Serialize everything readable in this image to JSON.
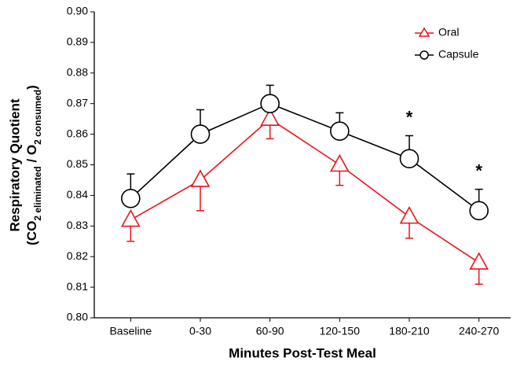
{
  "chart_data": {
    "type": "line",
    "xlabel": "Minutes Post-Test Meal",
    "ylabel": {
      "line1": "Respiratory Quotient",
      "line2": [
        {
          "text": "(CO"
        },
        {
          "text": "2 eliminated",
          "sub": true
        },
        {
          "text": " / O"
        },
        {
          "text": "2 consumed",
          "sub": true
        },
        {
          "text": ")"
        }
      ]
    },
    "categories": [
      "Baseline",
      "0-30",
      "60-90",
      "120-150",
      "180-210",
      "240-270"
    ],
    "series": [
      {
        "name": "Oral",
        "color": "#e8141b",
        "marker": "triangle",
        "error_direction": "down",
        "values": [
          0.832,
          0.845,
          0.865,
          0.85,
          0.833,
          0.818
        ],
        "errors": [
          0.007,
          0.01,
          0.0065,
          0.0067,
          0.007,
          0.007
        ]
      },
      {
        "name": "Capsule",
        "color": "#000000",
        "marker": "circle",
        "error_direction": "up",
        "values": [
          0.839,
          0.86,
          0.87,
          0.861,
          0.852,
          0.835
        ],
        "errors": [
          0.008,
          0.008,
          0.006,
          0.006,
          0.0075,
          0.007
        ]
      }
    ],
    "annotations": [
      {
        "text": "*",
        "x": "180-210"
      },
      {
        "text": "*",
        "x": "240-270"
      }
    ],
    "ylim": [
      0.8,
      0.9
    ],
    "yticks": [
      {
        "value": 0.8,
        "label": "0.80"
      },
      0.81,
      0.82,
      0.83,
      0.84,
      0.85,
      0.86,
      0.87,
      0.88,
      0.89,
      {
        "value": 0.9,
        "label": "0.90"
      }
    ],
    "legend": "top-right"
  }
}
